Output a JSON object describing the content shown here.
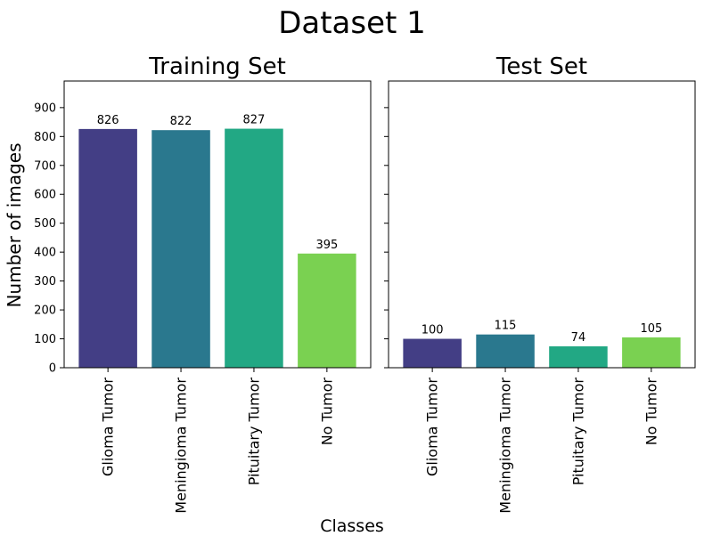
{
  "figure": {
    "suptitle": "Dataset 1",
    "ylabel": "Number of images",
    "xlabel": "Classes"
  },
  "chart_data": [
    {
      "type": "bar",
      "title": "Training Set",
      "categories": [
        "Glioma Tumor",
        "Meningioma Tumor",
        "Pituitary Tumor",
        "No Tumor"
      ],
      "values": [
        826,
        822,
        827,
        395
      ],
      "colors": [
        "#433e85",
        "#2a788e",
        "#22a884",
        "#7ad151"
      ],
      "ylim": [
        0,
        992
      ],
      "yticks": [
        0,
        100,
        200,
        300,
        400,
        500,
        600,
        700,
        800,
        900
      ],
      "ytick_labels_shown": true,
      "grid": false
    },
    {
      "type": "bar",
      "title": "Test Set",
      "categories": [
        "Glioma Tumor",
        "Meningioma Tumor",
        "Pituitary Tumor",
        "No Tumor"
      ],
      "values": [
        100,
        115,
        74,
        105
      ],
      "colors": [
        "#433e85",
        "#2a788e",
        "#22a884",
        "#7ad151"
      ],
      "ylim": [
        0,
        992
      ],
      "yticks": [
        0,
        100,
        200,
        300,
        400,
        500,
        600,
        700,
        800,
        900
      ],
      "ytick_labels_shown": false,
      "grid": false
    }
  ]
}
